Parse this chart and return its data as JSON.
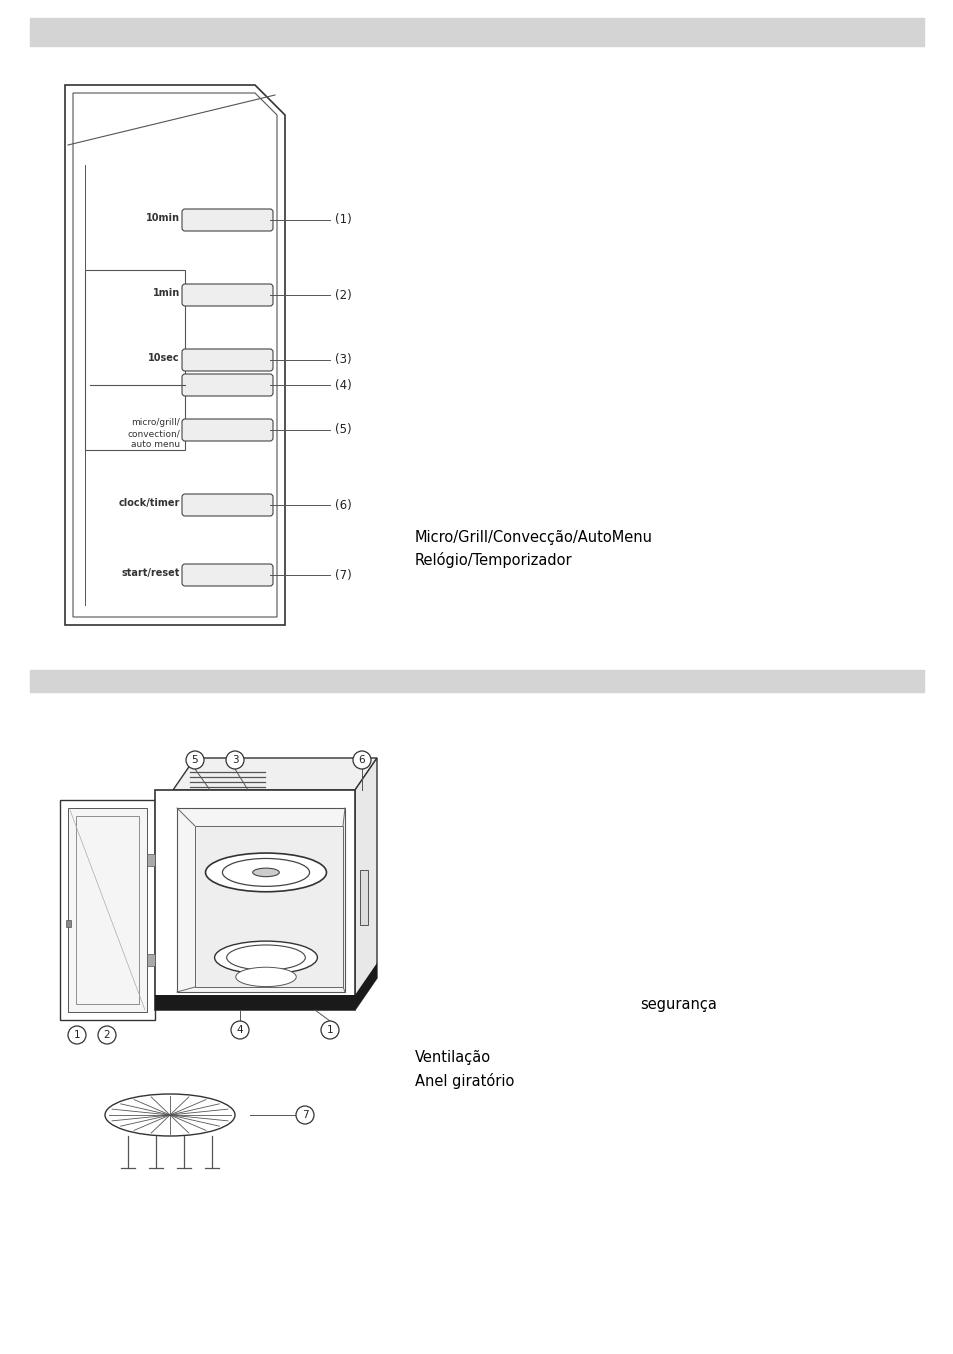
{
  "background_color": "#ffffff",
  "header_band_color": "#d4d4d4",
  "panel_text": "Micro/Grill/Convecção/AutoMenu\nRelógio/Temporizador",
  "bottom_text1": "segurança",
  "bottom_text2": "Ventilação\nAnel giratório",
  "font_color": "#000000",
  "font_size_main": 10.5
}
